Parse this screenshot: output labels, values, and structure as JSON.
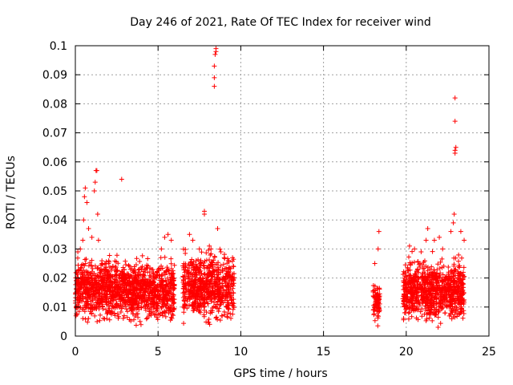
{
  "chart_data": {
    "type": "scatter",
    "title": "Day 246 of 2021, Rate Of TEC Index for receiver wind",
    "xlabel": "GPS time / hours",
    "ylabel": "ROTI / TECUs",
    "xlim": [
      0,
      25
    ],
    "ylim": [
      0,
      0.1
    ],
    "x_ticks": [
      0,
      5,
      10,
      15,
      20,
      25
    ],
    "y_ticks": [
      0,
      0.01,
      0.02,
      0.03,
      0.04,
      0.05,
      0.06,
      0.07,
      0.08,
      0.09,
      0.1
    ],
    "x_tick_labels": [
      "0",
      "5",
      "10",
      "15",
      "20",
      "25"
    ],
    "y_tick_labels": [
      "0",
      "0.01",
      "0.02",
      "0.03",
      "0.04",
      "0.05",
      "0.06",
      "0.07",
      "0.08",
      "0.09",
      "0.1"
    ],
    "grid": true,
    "marker": "plus",
    "marker_color": "#ff0000",
    "clusters": [
      {
        "x_range": [
          0.0,
          6.0
        ],
        "y_range": [
          0.002,
          0.026
        ],
        "count": 1400
      },
      {
        "x_range": [
          6.5,
          9.6
        ],
        "y_range": [
          0.002,
          0.028
        ],
        "count": 700
      },
      {
        "x_range": [
          18.0,
          18.4
        ],
        "y_range": [
          0.003,
          0.018
        ],
        "count": 80
      },
      {
        "x_range": [
          19.8,
          23.5
        ],
        "y_range": [
          0.002,
          0.026
        ],
        "count": 900
      }
    ],
    "spikes": [
      [
        0.15,
        0.029
      ],
      [
        0.3,
        0.03
      ],
      [
        0.45,
        0.033
      ],
      [
        0.5,
        0.04
      ],
      [
        0.55,
        0.048
      ],
      [
        0.6,
        0.051
      ],
      [
        0.7,
        0.046
      ],
      [
        0.8,
        0.037
      ],
      [
        1.0,
        0.034
      ],
      [
        1.15,
        0.05
      ],
      [
        1.2,
        0.053
      ],
      [
        1.25,
        0.057
      ],
      [
        1.3,
        0.057
      ],
      [
        1.35,
        0.042
      ],
      [
        1.4,
        0.033
      ],
      [
        1.8,
        0.025
      ],
      [
        2.0,
        0.025
      ],
      [
        2.8,
        0.054
      ],
      [
        4.6,
        0.023
      ],
      [
        5.2,
        0.03
      ],
      [
        5.4,
        0.034
      ],
      [
        5.6,
        0.035
      ],
      [
        5.8,
        0.033
      ],
      [
        6.9,
        0.035
      ],
      [
        7.1,
        0.033
      ],
      [
        7.5,
        0.03
      ],
      [
        7.8,
        0.043
      ],
      [
        7.8,
        0.042
      ],
      [
        8.1,
        0.031
      ],
      [
        8.2,
        0.03
      ],
      [
        8.4,
        0.086
      ],
      [
        8.4,
        0.089
      ],
      [
        8.4,
        0.093
      ],
      [
        8.45,
        0.097
      ],
      [
        8.5,
        0.098
      ],
      [
        8.5,
        0.099
      ],
      [
        8.6,
        0.037
      ],
      [
        8.8,
        0.029
      ],
      [
        9.0,
        0.027
      ],
      [
        9.5,
        0.027
      ],
      [
        18.1,
        0.025
      ],
      [
        18.3,
        0.03
      ],
      [
        18.35,
        0.036
      ],
      [
        20.2,
        0.031
      ],
      [
        20.5,
        0.03
      ],
      [
        20.9,
        0.029
      ],
      [
        21.2,
        0.033
      ],
      [
        21.3,
        0.037
      ],
      [
        21.7,
        0.033
      ],
      [
        22.0,
        0.034
      ],
      [
        22.2,
        0.03
      ],
      [
        22.7,
        0.036
      ],
      [
        22.85,
        0.039
      ],
      [
        22.9,
        0.042
      ],
      [
        22.95,
        0.063
      ],
      [
        22.95,
        0.064
      ],
      [
        23.0,
        0.065
      ],
      [
        22.95,
        0.074
      ],
      [
        22.95,
        0.082
      ],
      [
        23.3,
        0.036
      ],
      [
        23.5,
        0.033
      ]
    ]
  }
}
